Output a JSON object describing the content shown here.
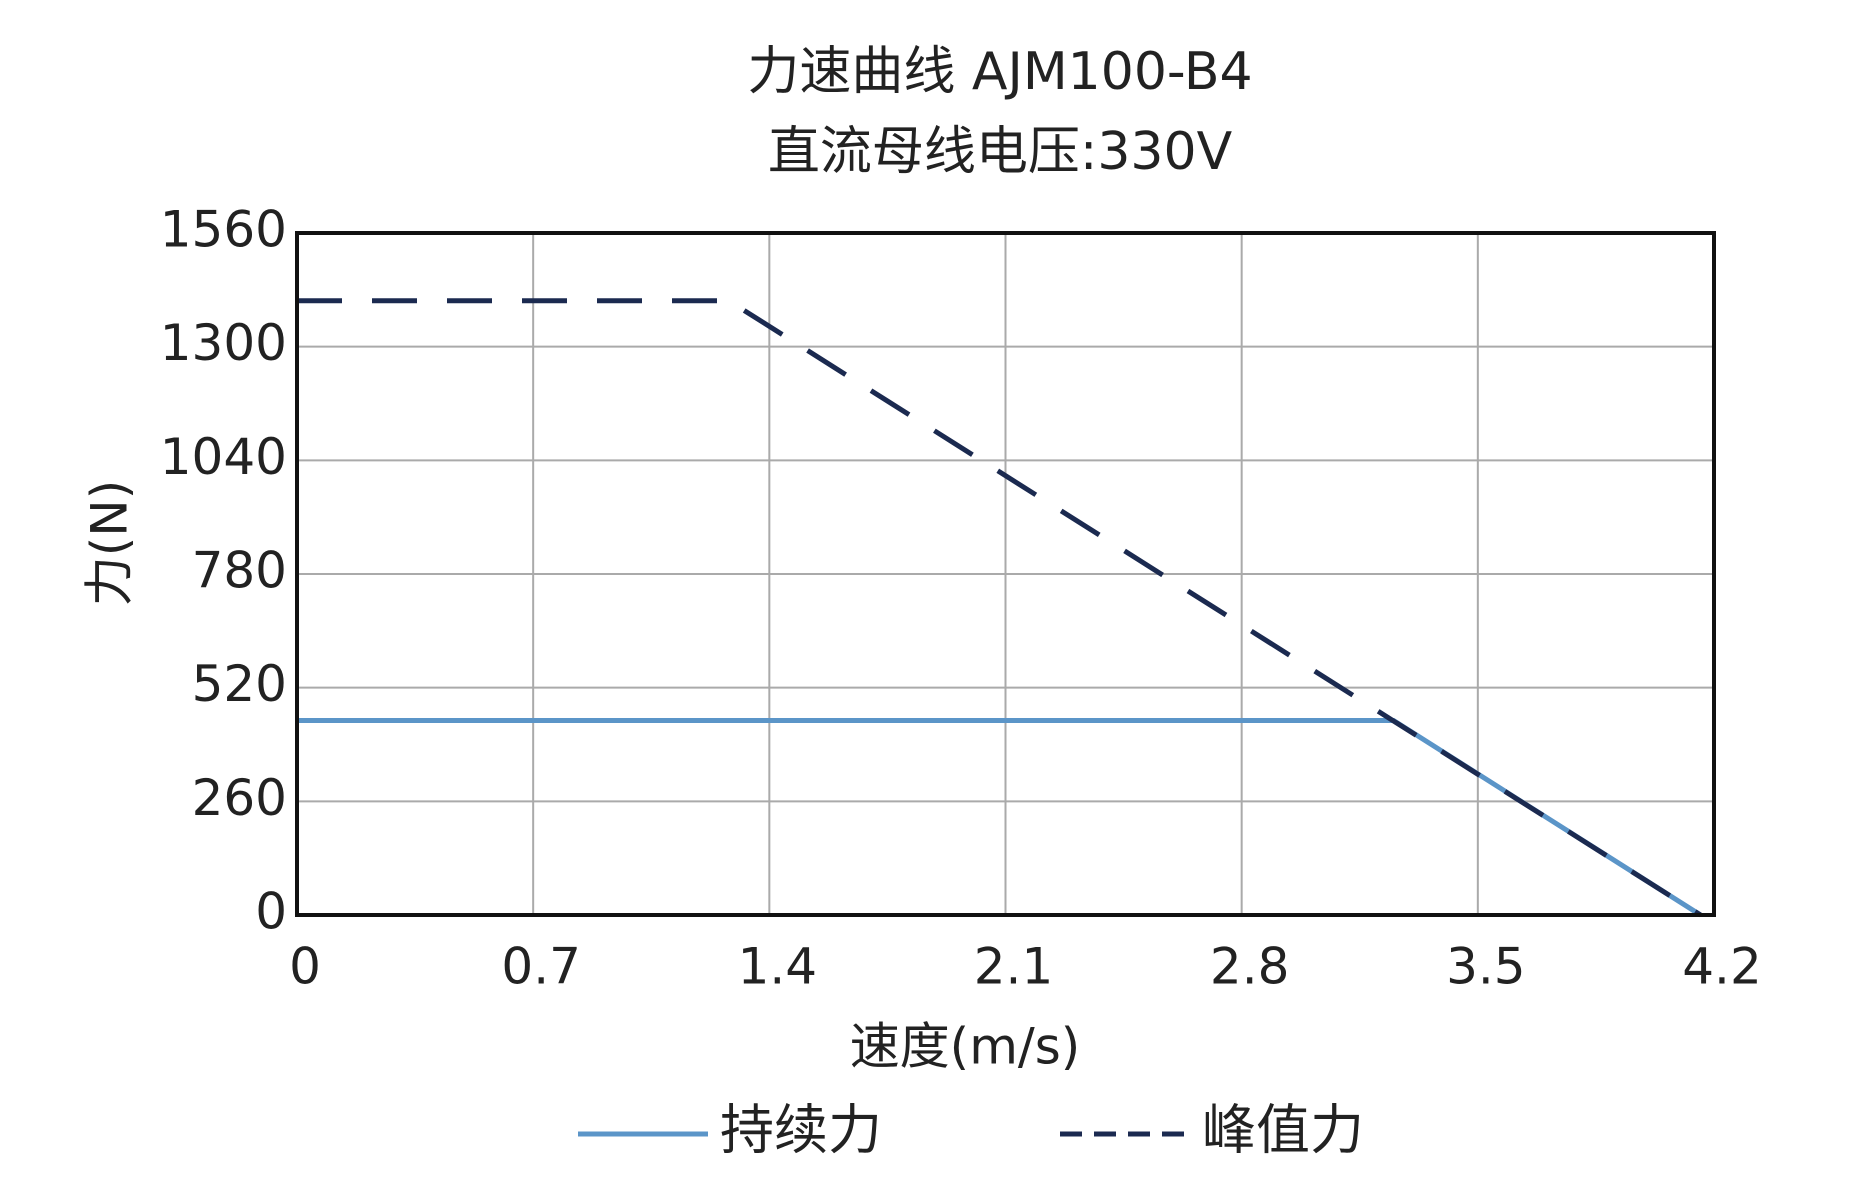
{
  "chart_data": {
    "type": "line",
    "title": "力速曲线 AJM100-B4",
    "subtitle": "直流母线电压:330V",
    "x_label": "速度(m/s)",
    "y_label": "力(N)",
    "xlim": [
      0,
      4.2
    ],
    "xticks": [
      0,
      0.7,
      1.4,
      2.1,
      2.8,
      3.5,
      4.2
    ],
    "ylim": [
      0,
      1560
    ],
    "yticks": [
      0,
      260,
      520,
      780,
      1040,
      1300,
      1560
    ],
    "grid": true,
    "legend": "bottom",
    "series": [
      {
        "name": "持续力",
        "color": "#5b95c8",
        "style": "solid",
        "x": [
          0,
          3.25,
          4.16
        ],
        "values": [
          445,
          445,
          0
        ]
      },
      {
        "name": "峰值力",
        "color": "#1b2a50",
        "style": "dashed",
        "x": [
          0,
          1.28,
          4.16
        ],
        "values": [
          1405,
          1405,
          0
        ]
      }
    ]
  }
}
